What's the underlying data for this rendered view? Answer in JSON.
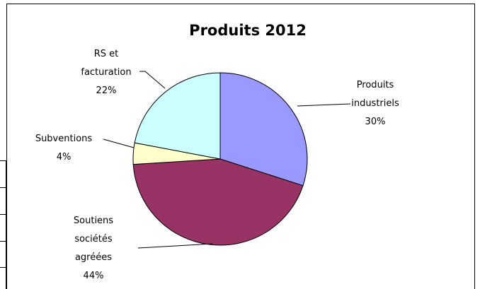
{
  "chart_data": {
    "type": "pie",
    "title": "Produits 2012",
    "slices": [
      {
        "label_lines": [
          "Produits",
          "industriels"
        ],
        "percent_label": "30%",
        "value": 30,
        "color": "#9999ff"
      },
      {
        "label_lines": [
          "Soutiens",
          "sociétés",
          "agréées"
        ],
        "percent_label": "44%",
        "value": 44,
        "color": "#993366"
      },
      {
        "label_lines": [
          "Subventions"
        ],
        "percent_label": "4%",
        "value": 4,
        "color": "#ffffcc"
      },
      {
        "label_lines": [
          "RS et",
          "facturation"
        ],
        "percent_label": "22%",
        "value": 22,
        "color": "#ccffff"
      }
    ],
    "legend": "none",
    "start_angle_deg": 0,
    "direction": "clockwise"
  }
}
